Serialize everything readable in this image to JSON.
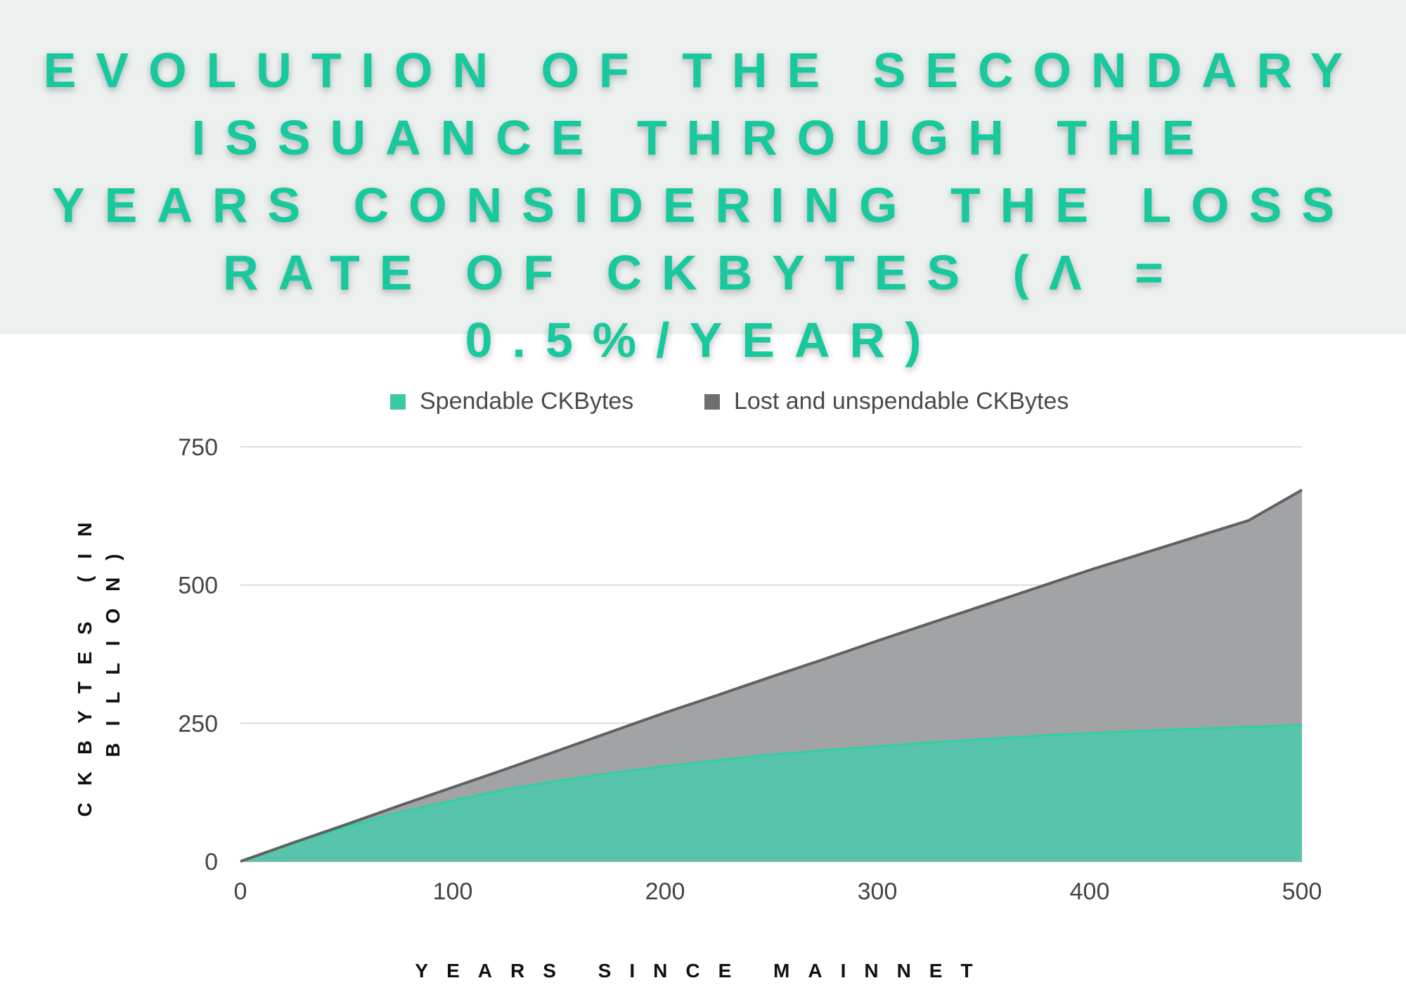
{
  "title": "EVOLUTION OF THE SECONDARY ISSUANCE THROUGH THE YEARS CONSIDERING THE LOSS RATE OF CKBYTES (Λ = 0.5%/YEAR)",
  "chart_data": {
    "type": "area",
    "stacked": true,
    "title": "EVOLUTION OF THE SECONDARY ISSUANCE THROUGH THE YEARS CONSIDERING THE LOSS RATE OF CKBYTES (Λ = 0.5%/YEAR)",
    "xlabel": "YEARS SINCE MAINNET",
    "ylabel": "CKBYTES (IN BILLION)",
    "xlim": [
      0,
      500
    ],
    "ylim": [
      0,
      750
    ],
    "xticks": [
      "0",
      "100",
      "200",
      "300",
      "400",
      "500"
    ],
    "yticks": [
      "0",
      "250",
      "500",
      "750"
    ],
    "grid": "horizontal",
    "legend": "top",
    "x": [
      0,
      25,
      50,
      75,
      100,
      125,
      150,
      175,
      200,
      225,
      250,
      275,
      300,
      325,
      350,
      375,
      400,
      425,
      450,
      475,
      500
    ],
    "series": [
      {
        "name": "Spendable CKBytes",
        "color": "#3ec9a4",
        "values": [
          0,
          33,
          63,
          89,
          110,
          130,
          146,
          160,
          172,
          183,
          193,
          201,
          208,
          215,
          221,
          227,
          232,
          236,
          240,
          243,
          247
        ]
      },
      {
        "name": "Lost and unspendable CKBytes",
        "color": "#6e6f71",
        "values": [
          0,
          1,
          4,
          12,
          24,
          37,
          55,
          75,
          97,
          118,
          141,
          165,
          191,
          216,
          242,
          268,
          295,
          321,
          347,
          374,
          425
        ]
      }
    ],
    "totals": [
      0,
      34,
      67,
      101,
      134,
      167,
      201,
      235,
      269,
      301,
      334,
      366,
      399,
      431,
      463,
      495,
      527,
      557,
      587,
      617,
      672
    ]
  }
}
